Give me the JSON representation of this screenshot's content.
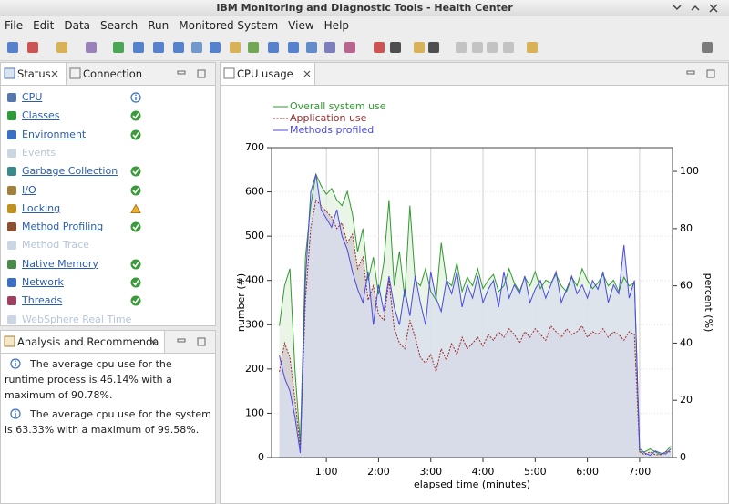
{
  "window_title": "IBM Monitoring and Diagnostic Tools - Health Center",
  "menu": [
    "File",
    "Edit",
    "Data",
    "Search",
    "Run",
    "Monitored System",
    "View",
    "Help"
  ],
  "status_panel": {
    "tabs": [
      "Status",
      "Connection"
    ],
    "items": [
      {
        "label": "CPU",
        "state": "info"
      },
      {
        "label": "Classes",
        "state": "ok"
      },
      {
        "label": "Environment",
        "state": "ok"
      },
      {
        "label": "Events",
        "state": "disabled"
      },
      {
        "label": "Garbage Collection",
        "state": "ok"
      },
      {
        "label": "I/O",
        "state": "ok"
      },
      {
        "label": "Locking",
        "state": "warn"
      },
      {
        "label": "Method Profiling",
        "state": "ok"
      },
      {
        "label": "Method Trace",
        "state": "disabled"
      },
      {
        "label": "Native Memory",
        "state": "ok"
      },
      {
        "label": "Network",
        "state": "ok"
      },
      {
        "label": "Threads",
        "state": "ok"
      },
      {
        "label": "WebSphere Real Time",
        "state": "disabled"
      }
    ]
  },
  "analysis_panel": {
    "tab": "Analysis and Recommenda",
    "messages": [
      "The average cpu use for the runtime process is 46.14% with a maximum of 90.78%.",
      "The average cpu use for the system is 63.33% with a maximum of 99.58%."
    ]
  },
  "cpu_panel": {
    "tab": "CPU usage"
  },
  "chart_data": {
    "type": "line",
    "x_label": "elapsed time (minutes)",
    "y_label": "number (#)",
    "y2_label": "percent (%)",
    "x": [
      0.1,
      0.2,
      0.3,
      0.4,
      0.5,
      0.6,
      0.7,
      0.8,
      0.9,
      1.0,
      1.1,
      1.2,
      1.3,
      1.4,
      1.5,
      1.6,
      1.7,
      1.8,
      1.9,
      2.0,
      2.1,
      2.2,
      2.3,
      2.4,
      2.5,
      2.6,
      2.7,
      2.8,
      2.9,
      3.0,
      3.1,
      3.2,
      3.3,
      3.4,
      3.5,
      3.6,
      3.7,
      3.8,
      3.9,
      4.0,
      4.1,
      4.2,
      4.3,
      4.4,
      4.5,
      4.6,
      4.7,
      4.8,
      4.9,
      5.0,
      5.1,
      5.2,
      5.3,
      5.4,
      5.5,
      5.6,
      5.7,
      5.8,
      5.9,
      6.0,
      6.1,
      6.2,
      6.3,
      6.4,
      6.5,
      6.6,
      6.7,
      6.8,
      6.9,
      7.0,
      7.1,
      7.2,
      7.3,
      7.4,
      7.5,
      7.6
    ],
    "xlim": [
      -0.05,
      7.63
    ],
    "xticks": [
      {
        "value": 1,
        "label": "1:00"
      },
      {
        "value": 2,
        "label": "2:00"
      },
      {
        "value": 3,
        "label": "3:00"
      },
      {
        "value": 4,
        "label": "4:00"
      },
      {
        "value": 5,
        "label": "5:00"
      },
      {
        "value": 6,
        "label": "6:00"
      },
      {
        "value": 7,
        "label": "7:00"
      }
    ],
    "ylim": [
      0,
      700
    ],
    "yticks": [
      0,
      100,
      200,
      300,
      400,
      500,
      600,
      700
    ],
    "y2lim": [
      0,
      108.3
    ],
    "y2ticks": [
      0,
      20,
      40,
      60,
      80,
      100
    ],
    "grid": true,
    "legend": "top-left",
    "series": [
      {
        "name": "Overall system use",
        "color": "#2f9a2f",
        "fill": "#e3f1e0",
        "dashed": false,
        "axis": "y2",
        "values": [
          46,
          60,
          66,
          30,
          5,
          70,
          88,
          99,
          95,
          92,
          94,
          90,
          88,
          93,
          85,
          72,
          80,
          62,
          70,
          57,
          68,
          90,
          60,
          72,
          56,
          88,
          62,
          60,
          66,
          58,
          55,
          75,
          62,
          60,
          68,
          58,
          63,
          60,
          66,
          59,
          62,
          64,
          58,
          60,
          66,
          61,
          58,
          63,
          60,
          65,
          59,
          62,
          61,
          64,
          60,
          58,
          63,
          60,
          66,
          62,
          59,
          61,
          64,
          60,
          62,
          58,
          63,
          60,
          61,
          2,
          2,
          3,
          2,
          1,
          2,
          4
        ]
      },
      {
        "name": "Application use",
        "color": "#9b2a2a",
        "fill": "#cfc7d2",
        "dashed": true,
        "axis": "y2",
        "values": [
          30,
          40,
          35,
          20,
          3,
          55,
          80,
          90,
          88,
          86,
          84,
          80,
          82,
          75,
          78,
          66,
          70,
          55,
          60,
          50,
          48,
          62,
          45,
          40,
          38,
          48,
          42,
          35,
          33,
          36,
          30,
          38,
          34,
          40,
          36,
          42,
          38,
          40,
          42,
          39,
          43,
          41,
          44,
          42,
          45,
          43,
          40,
          44,
          42,
          45,
          43,
          41,
          46,
          44,
          42,
          45,
          43,
          44,
          46,
          42,
          44,
          43,
          45,
          42,
          44,
          43,
          41,
          44,
          43,
          2,
          1,
          2,
          1,
          1,
          2,
          2
        ]
      },
      {
        "name": "Methods profiled",
        "color": "#4a4ae0",
        "fill": "#d8ddee",
        "dashed": false,
        "axis": "y",
        "values": [
          230,
          180,
          150,
          90,
          10,
          400,
          600,
          640,
          560,
          540,
          520,
          560,
          500,
          470,
          420,
          380,
          350,
          420,
          300,
          390,
          330,
          410,
          340,
          300,
          380,
          320,
          410,
          350,
          300,
          420,
          360,
          330,
          400,
          370,
          420,
          340,
          390,
          360,
          410,
          350,
          380,
          400,
          340,
          420,
          360,
          390,
          370,
          410,
          350,
          380,
          400,
          360,
          390,
          420,
          350,
          380,
          410,
          370,
          390,
          360,
          400,
          380,
          420,
          350,
          390,
          370,
          480,
          360,
          400,
          20,
          10,
          5,
          15,
          10,
          8,
          20
        ]
      }
    ]
  }
}
